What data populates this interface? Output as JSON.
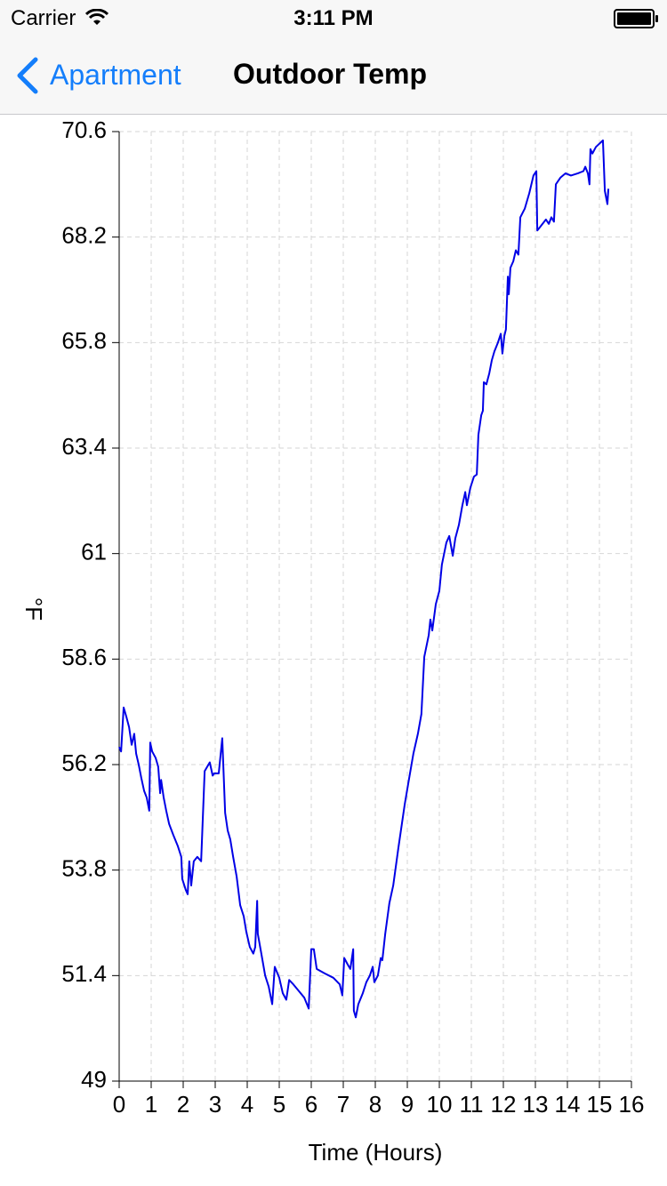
{
  "status_bar": {
    "carrier": "Carrier",
    "time": "3:11 PM"
  },
  "nav_bar": {
    "back": "Apartment",
    "title": "Outdoor Temp"
  },
  "chart_data": {
    "type": "line",
    "xlabel": "Time (Hours)",
    "ylabel": "°F",
    "color": "#0000e6",
    "grid": true,
    "xlim": [
      0,
      16
    ],
    "xticks": [
      0,
      1,
      2,
      3,
      4,
      5,
      6,
      7,
      8,
      9,
      10,
      11,
      12,
      13,
      14,
      15,
      16
    ],
    "ylim": [
      49,
      70.6
    ],
    "yticks": [
      49,
      51.4,
      53.8,
      56.2,
      58.6,
      61,
      63.4,
      65.8,
      68.2,
      70.6
    ],
    "x": [
      0,
      0.06,
      0.14,
      0.22,
      0.31,
      0.39,
      0.47,
      0.53,
      0.61,
      0.69,
      0.78,
      0.86,
      0.94,
      0.97,
      1.03,
      1.14,
      1.22,
      1.28,
      1.31,
      1.39,
      1.47,
      1.56,
      1.69,
      1.83,
      1.94,
      1.97,
      2.08,
      2.14,
      2.19,
      2.25,
      2.33,
      2.44,
      2.56,
      2.67,
      2.83,
      2.92,
      2.97,
      3.11,
      3.22,
      3.31,
      3.39,
      3.47,
      3.56,
      3.67,
      3.78,
      3.89,
      3.97,
      4.08,
      4.19,
      4.25,
      4.31,
      4.33,
      4.44,
      4.56,
      4.67,
      4.78,
      4.86,
      5.0,
      5.11,
      5.22,
      5.31,
      5.44,
      5.61,
      5.78,
      5.92,
      6.0,
      6.08,
      6.17,
      6.42,
      6.69,
      6.89,
      6.97,
      7.03,
      7.14,
      7.22,
      7.31,
      7.33,
      7.39,
      7.47,
      7.61,
      7.72,
      7.83,
      7.92,
      7.97,
      8.08,
      8.17,
      8.22,
      8.31,
      8.44,
      8.56,
      8.72,
      8.92,
      9.06,
      9.19,
      9.33,
      9.44,
      9.53,
      9.67,
      9.72,
      9.78,
      9.89,
      10.0,
      10.08,
      10.22,
      10.31,
      10.42,
      10.5,
      10.61,
      10.72,
      10.81,
      10.86,
      10.97,
      11.08,
      11.17,
      11.22,
      11.31,
      11.36,
      11.39,
      11.47,
      11.56,
      11.64,
      11.72,
      11.83,
      11.92,
      11.97,
      12.03,
      12.08,
      12.14,
      12.17,
      12.22,
      12.31,
      12.39,
      12.47,
      12.53,
      12.67,
      12.81,
      12.94,
      13.03,
      13.06,
      13.17,
      13.33,
      13.42,
      13.5,
      13.58,
      13.64,
      13.78,
      13.94,
      14.11,
      14.33,
      14.5,
      14.56,
      14.64,
      14.69,
      14.72,
      14.78,
      14.89,
      15.11,
      15.17,
      15.25,
      15.28
    ],
    "values": [
      56.6,
      56.5,
      57.5,
      57.3,
      57.05,
      56.65,
      56.9,
      56.45,
      56.2,
      55.9,
      55.6,
      55.45,
      55.15,
      56.7,
      56.5,
      56.35,
      56.15,
      55.55,
      55.85,
      55.45,
      55.15,
      54.85,
      54.6,
      54.35,
      54.1,
      53.6,
      53.35,
      53.25,
      54.0,
      53.45,
      54.0,
      54.1,
      54.0,
      56.05,
      56.25,
      55.95,
      56.0,
      56.0,
      56.8,
      55.1,
      54.7,
      54.5,
      54.1,
      53.65,
      53.0,
      52.75,
      52.4,
      52.05,
      51.9,
      52.05,
      53.1,
      52.35,
      51.9,
      51.4,
      51.15,
      50.75,
      51.6,
      51.35,
      51.0,
      50.85,
      51.3,
      51.2,
      51.05,
      50.9,
      50.65,
      52.0,
      52.0,
      51.55,
      51.45,
      51.35,
      51.2,
      50.95,
      51.8,
      51.65,
      51.55,
      52.0,
      50.6,
      50.45,
      50.75,
      51.0,
      51.25,
      51.4,
      51.6,
      51.25,
      51.4,
      51.8,
      51.75,
      52.35,
      53.05,
      53.45,
      54.3,
      55.3,
      55.9,
      56.45,
      56.9,
      57.35,
      58.65,
      59.15,
      59.5,
      59.25,
      59.85,
      60.15,
      60.75,
      61.25,
      61.4,
      60.95,
      61.35,
      61.65,
      62.1,
      62.4,
      62.1,
      62.5,
      62.75,
      62.8,
      63.7,
      64.15,
      64.25,
      64.9,
      64.85,
      65.1,
      65.4,
      65.6,
      65.8,
      66.0,
      65.55,
      65.95,
      66.1,
      67.3,
      66.9,
      67.5,
      67.65,
      67.9,
      67.8,
      68.65,
      68.85,
      69.2,
      69.6,
      69.7,
      68.35,
      68.45,
      68.6,
      68.5,
      68.65,
      68.55,
      69.4,
      69.55,
      69.65,
      69.6,
      69.65,
      69.7,
      69.8,
      69.65,
      69.4,
      70.2,
      70.1,
      70.25,
      70.4,
      69.25,
      68.95,
      69.3
    ]
  }
}
